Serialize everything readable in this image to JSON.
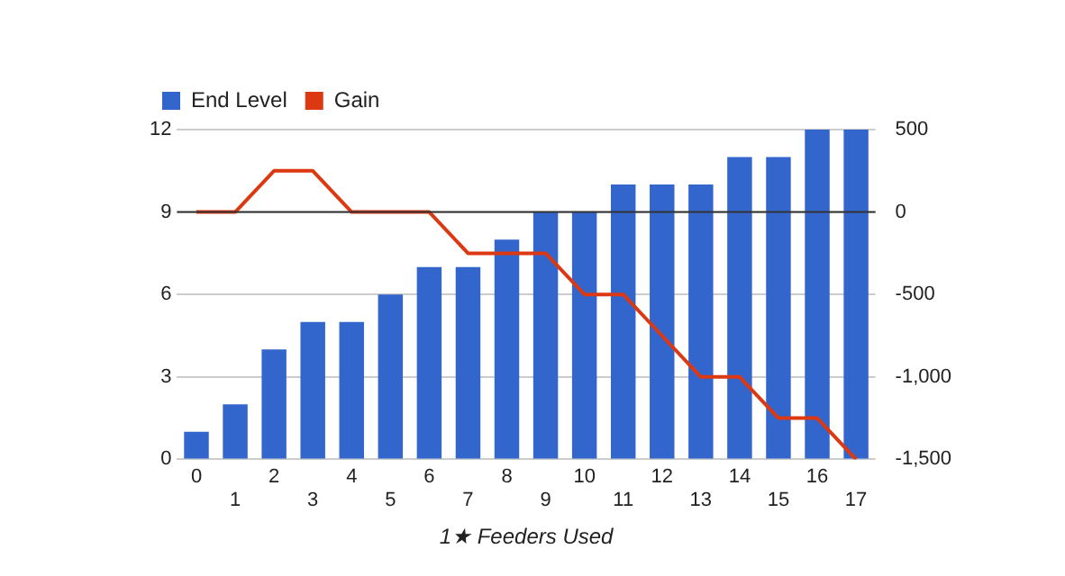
{
  "chart_data": {
    "type": "bar",
    "xlabel": "1★ Feeders Used",
    "categories": [
      "0",
      "1",
      "2",
      "3",
      "4",
      "5",
      "6",
      "7",
      "8",
      "9",
      "10",
      "11",
      "12",
      "13",
      "14",
      "15",
      "16",
      "17"
    ],
    "series": [
      {
        "name": "End Level",
        "color": "#3366cc",
        "values": [
          1,
          2,
          4,
          5,
          5,
          6,
          7,
          7,
          8,
          9,
          9,
          10,
          10,
          10,
          11,
          11,
          12,
          12
        ]
      },
      {
        "name": "Gain",
        "type": "line",
        "axis": "y2",
        "color": "#dc3912",
        "values": [
          0,
          0,
          250,
          250,
          0,
          0,
          0,
          -250,
          -250,
          -250,
          -500,
          -500,
          -750,
          -1000,
          -1000,
          -1250,
          -1250,
          -1500
        ]
      }
    ],
    "ylim": [
      0,
      12
    ],
    "yticks": [
      0,
      3,
      6,
      9,
      12
    ],
    "y2lim": [
      -1500,
      500
    ],
    "y2ticks": [
      {
        "value": -1500,
        "label": "-1,500"
      },
      {
        "value": -1000,
        "label": "-1,000"
      },
      -500,
      0,
      500
    ],
    "ref_lines": [
      {
        "axis": "y2",
        "value": 0,
        "color": "#333333"
      }
    ],
    "grid": "y",
    "legend": "top left",
    "marker": "none",
    "line_style": "solid"
  }
}
